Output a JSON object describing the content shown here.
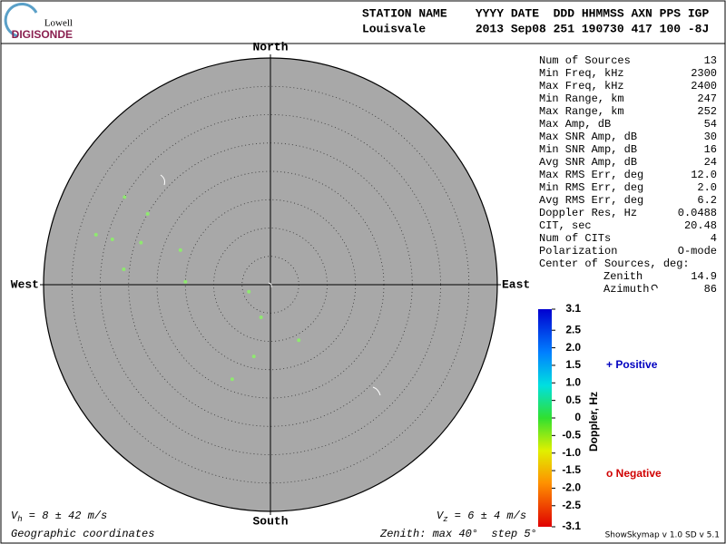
{
  "logo": {
    "top": "Lowell",
    "bottom": "DIGISONDE"
  },
  "header": {
    "labels": "STATION NAME    YYYY DATE  DDD HHMMSS AXN PPS IGP",
    "values": "Louisvale       2013 Sep08 251 190730 417 100 -8J"
  },
  "stats": [
    [
      "Num of Sources",
      "13"
    ],
    [
      "Min Freq, kHz",
      "2300"
    ],
    [
      "Max Freq, kHz",
      "2400"
    ],
    [
      "Min Range, km",
      "247"
    ],
    [
      "Max Range, km",
      "252"
    ],
    [
      "Max Amp, dB",
      "54"
    ],
    [
      "Max SNR Amp, dB",
      "30"
    ],
    [
      "Min SNR Amp, dB",
      "16"
    ],
    [
      "Avg SNR Amp, dB",
      "24"
    ],
    [
      "Max RMS Err, deg",
      "12.0"
    ],
    [
      "Min RMS Err, deg",
      "2.0"
    ],
    [
      "Avg RMS Err, deg",
      "6.2"
    ],
    [
      "Doppler Res, Hz",
      "0.0488"
    ],
    [
      "CIT, sec",
      "20.48"
    ],
    [
      "Num of CITs",
      "4"
    ],
    [
      "Polarization",
      "O-mode"
    ]
  ],
  "center": {
    "title": "Center of Sources, deg:",
    "zenith_label": "Zenith",
    "zenith": "14.9",
    "azimuth_label": "Azimuth",
    "azimuth": "86"
  },
  "legend": {
    "positive": "+ Positive",
    "negative": "o Negative"
  },
  "footer": {
    "vh": {
      "symbol": "V",
      "sub": "h",
      "text": " = 8 ± 42 m/s"
    },
    "vz": {
      "symbol": "V",
      "sub": "z",
      "text": " = 6 ± 4 m/s"
    },
    "coords": "Geographic coordinates",
    "zenith": "Zenith: max 40°  step 5°",
    "version": "ShowSkymap v 1.0  SD v 5.1"
  },
  "chart_data": {
    "type": "skymap",
    "directions": {
      "north": "North",
      "south": "South",
      "east": "East",
      "west": "West"
    },
    "rlim": [
      0,
      40
    ],
    "rticks": [
      5,
      10,
      15,
      20,
      25,
      30,
      35
    ],
    "color": "#8fe870",
    "zenith": [
      30,
      25,
      32,
      29,
      24,
      17,
      26,
      15,
      4,
      6,
      11,
      13,
      18
    ],
    "azimuth": [
      301,
      300,
      286,
      286,
      288,
      291,
      276,
      272,
      252,
      196,
      153,
      193,
      202
    ],
    "colorbar": {
      "label": "Doppler, Hz",
      "lim": [
        -3.1,
        3.1
      ],
      "ticks": [
        3.1,
        2.5,
        {
          "value": 2,
          "label": "2.0"
        },
        1.5,
        {
          "value": 1,
          "label": "1.0"
        },
        0.5,
        0,
        -0.5,
        {
          "value": -1,
          "label": "-1.0"
        },
        -1.5,
        {
          "value": -2,
          "label": "-2.0"
        },
        -2.5,
        -3.1
      ]
    }
  }
}
